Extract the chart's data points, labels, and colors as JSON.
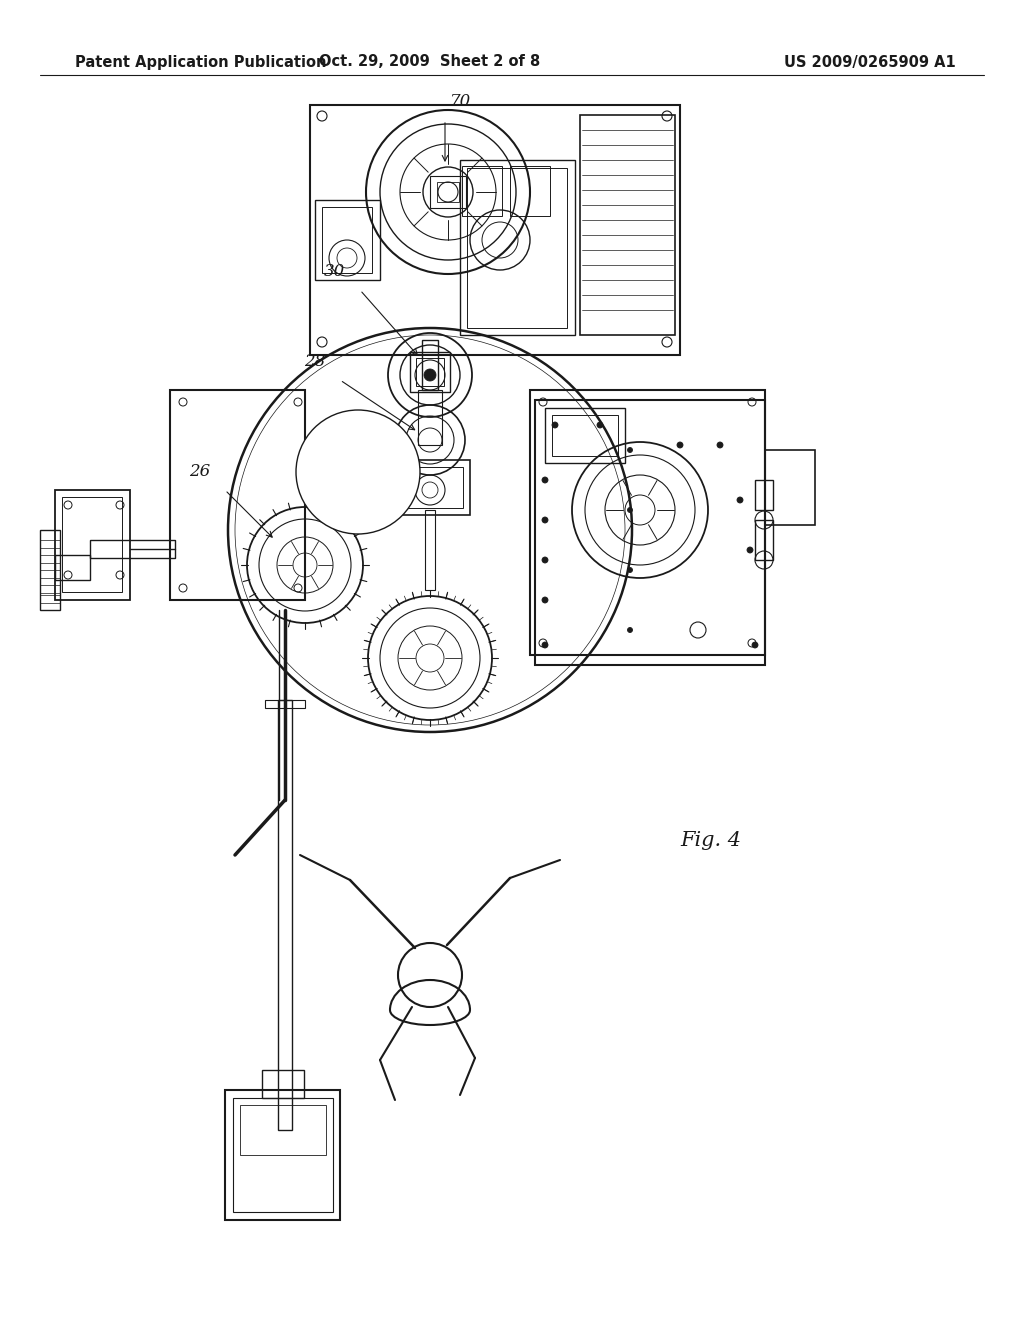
{
  "header_left": "Patent Application Publication",
  "header_mid": "Oct. 29, 2009  Sheet 2 of 8",
  "header_right": "US 2009/0265909 A1",
  "fig_label": "Fig. 4",
  "background_color": "#ffffff",
  "line_color": "#1a1a1a",
  "header_fontsize": 10.5,
  "fig_label_fontsize": 15,
  "label_fontsize": 12
}
